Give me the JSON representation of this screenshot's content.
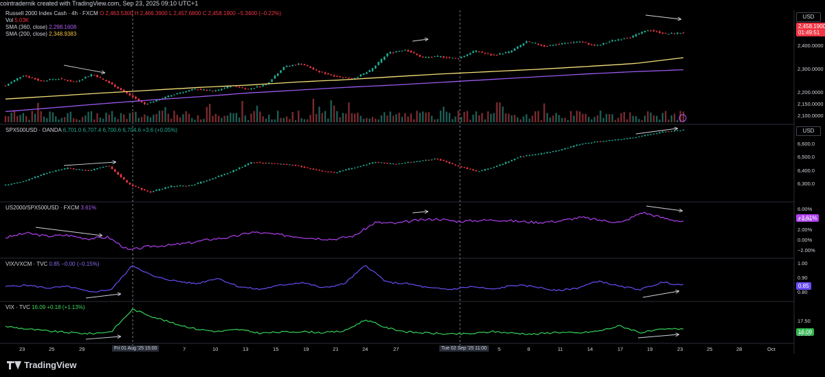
{
  "header": {
    "text": "cointradernik created with TradingView.com, Sep 23, 2025 09:10 UTC+1"
  },
  "panes": {
    "rut": {
      "title": "Russell 2000 Index Cash · 4h · FXCM",
      "ohlc_o": "O 2,463.5300",
      "ohlc_h": "H 2,466.3900",
      "ohlc_l": "L 2,457.6800",
      "ohlc_c": "C 2,458.1900",
      "change": "−5.3400 (−0.22%)",
      "vol_label": "Vol",
      "vol_value": "5.03K",
      "sma1_label": "SMA (360, close)",
      "sma1_value": "2,298.1608",
      "sma2_label": "SMA (200, close)",
      "sma2_value": "2,348.9383",
      "price_tag": "2,458.1900",
      "countdown": "01:49:51",
      "axis_labels": [
        "2,400.0000",
        "2,300.0000",
        "2,200.0000",
        "2,150.0000",
        "2,100.0000"
      ],
      "currency": "USD"
    },
    "spx": {
      "title": "SPX500USD · OANDA",
      "values": "6,701.0  6,707.4  6,700.6  6,704.6  +3.6 (+0.05%)",
      "axis_labels": [
        "6,600.0",
        "6,500.0",
        "6,400.0",
        "6,300.0"
      ],
      "currency": "USD"
    },
    "ratio": {
      "title": "US2000/SPX500USD · FXCM",
      "value": "3.61%",
      "price_tag": "+3.61%",
      "axis_labels": [
        "6.00%",
        "4.00%",
        "2.00%",
        "0.00%",
        "−2.00%"
      ]
    },
    "vixvxn": {
      "title": "VIX/VXCM · TVC",
      "values": "0.85  −0.00 (−0.15%)",
      "price_tag": "0.85",
      "axis_labels": [
        "1.00",
        "0.90",
        "0.80"
      ]
    },
    "vix": {
      "title": "VIX · TVC",
      "values": "16.09  +0.18 (+1.13%)",
      "price_tag": "16.09",
      "axis_labels": [
        "17.50",
        "15.00"
      ]
    }
  },
  "xaxis": {
    "labels": [
      "23",
      "25",
      "29",
      "5",
      "7",
      "10",
      "13",
      "15",
      "19",
      "21",
      "24",
      "27",
      "5",
      "8",
      "11",
      "14",
      "17",
      "19",
      "23",
      "25",
      "28",
      "Oct"
    ],
    "highlight1": "Fri 01 Aug '25   15:00",
    "highlight2": "Tue 02 Sep '25   11:00"
  },
  "brand": "TradingView",
  "colors": {
    "up": "#22ab94",
    "down": "#f23645",
    "sma200": "#f5e07a",
    "sma360": "#9b59f0",
    "ratio": "#b040f0",
    "vixvxn": "#6a4cf5",
    "vix": "#35d35a"
  },
  "chart_data": [
    {
      "type": "candlestick",
      "title": "Russell 2000 Index Cash · 4h · FXCM",
      "ylim": [
        2090,
        2480
      ],
      "y": [
        2230,
        2275,
        2250,
        2260,
        2245,
        2280,
        2240,
        2195,
        2150,
        2175,
        2200,
        2215,
        2205,
        2230,
        2215,
        2235,
        2310,
        2325,
        2290,
        2270,
        2260,
        2295,
        2370,
        2385,
        2350,
        2355,
        2345,
        2380,
        2360,
        2375,
        2420,
        2400,
        2410,
        2420,
        2400,
        2425,
        2440,
        2470,
        2452,
        2458
      ],
      "sma200": [
        2172,
        2185,
        2198,
        2210,
        2222,
        2232,
        2245,
        2255,
        2268,
        2280,
        2290,
        2300,
        2312,
        2325,
        2350
      ],
      "sma360": [
        2118,
        2135,
        2152,
        2168,
        2182,
        2198,
        2210,
        2222,
        2232,
        2244,
        2256,
        2268,
        2280,
        2290,
        2298
      ]
    },
    {
      "type": "candlestick",
      "title": "SPX500USD · OANDA",
      "ylim": [
        6200,
        6700
      ],
      "y": [
        6295,
        6330,
        6385,
        6420,
        6400,
        6440,
        6300,
        6240,
        6285,
        6290,
        6340,
        6395,
        6465,
        6455,
        6445,
        6410,
        6385,
        6425,
        6465,
        6450,
        6470,
        6490,
        6435,
        6395,
        6440,
        6505,
        6525,
        6555,
        6600,
        6620,
        6635,
        6660,
        6690,
        6705
      ]
    },
    {
      "type": "line",
      "title": "US2000/SPX500USD · FXCM",
      "ylim": [
        -3,
        7
      ],
      "y": [
        0.5,
        1.4,
        0.8,
        1.0,
        0.3,
        0.6,
        -2.0,
        -1.2,
        -1.0,
        -0.5,
        0.2,
        0.6,
        1.6,
        1.2,
        0.8,
        0.4,
        0.2,
        0.9,
        3.5,
        3.3,
        3.9,
        4.2,
        3.7,
        3.9,
        4.0,
        3.7,
        3.5,
        3.8,
        4.5,
        3.9,
        3.5,
        5.5,
        4.4,
        3.61
      ]
    },
    {
      "type": "line",
      "title": "VIX/VXCM · TVC",
      "ylim": [
        0.75,
        1.02
      ],
      "y": [
        0.84,
        0.85,
        0.83,
        0.84,
        0.8,
        0.82,
        0.99,
        0.91,
        0.88,
        0.86,
        0.9,
        0.84,
        0.82,
        0.85,
        0.87,
        0.83,
        0.86,
        0.99,
        0.87,
        0.86,
        0.83,
        0.82,
        0.84,
        0.82,
        0.85,
        0.84,
        0.81,
        0.83,
        0.88,
        0.84,
        0.82,
        0.87,
        0.85
      ]
    },
    {
      "type": "line",
      "title": "VIX · TVC",
      "ylim": [
        13.5,
        20.5
      ],
      "y": [
        16.5,
        16.0,
        15.6,
        15.3,
        15.1,
        15.5,
        19.8,
        18.3,
        17.0,
        16.0,
        15.5,
        15.9,
        15.2,
        15.4,
        15.5,
        15.3,
        15.6,
        17.8,
        16.2,
        15.4,
        15.2,
        15.0,
        15.1,
        15.5,
        15.2,
        15.0,
        15.4,
        15.2,
        15.6,
        16.6,
        15.3,
        15.9,
        16.09
      ]
    }
  ]
}
